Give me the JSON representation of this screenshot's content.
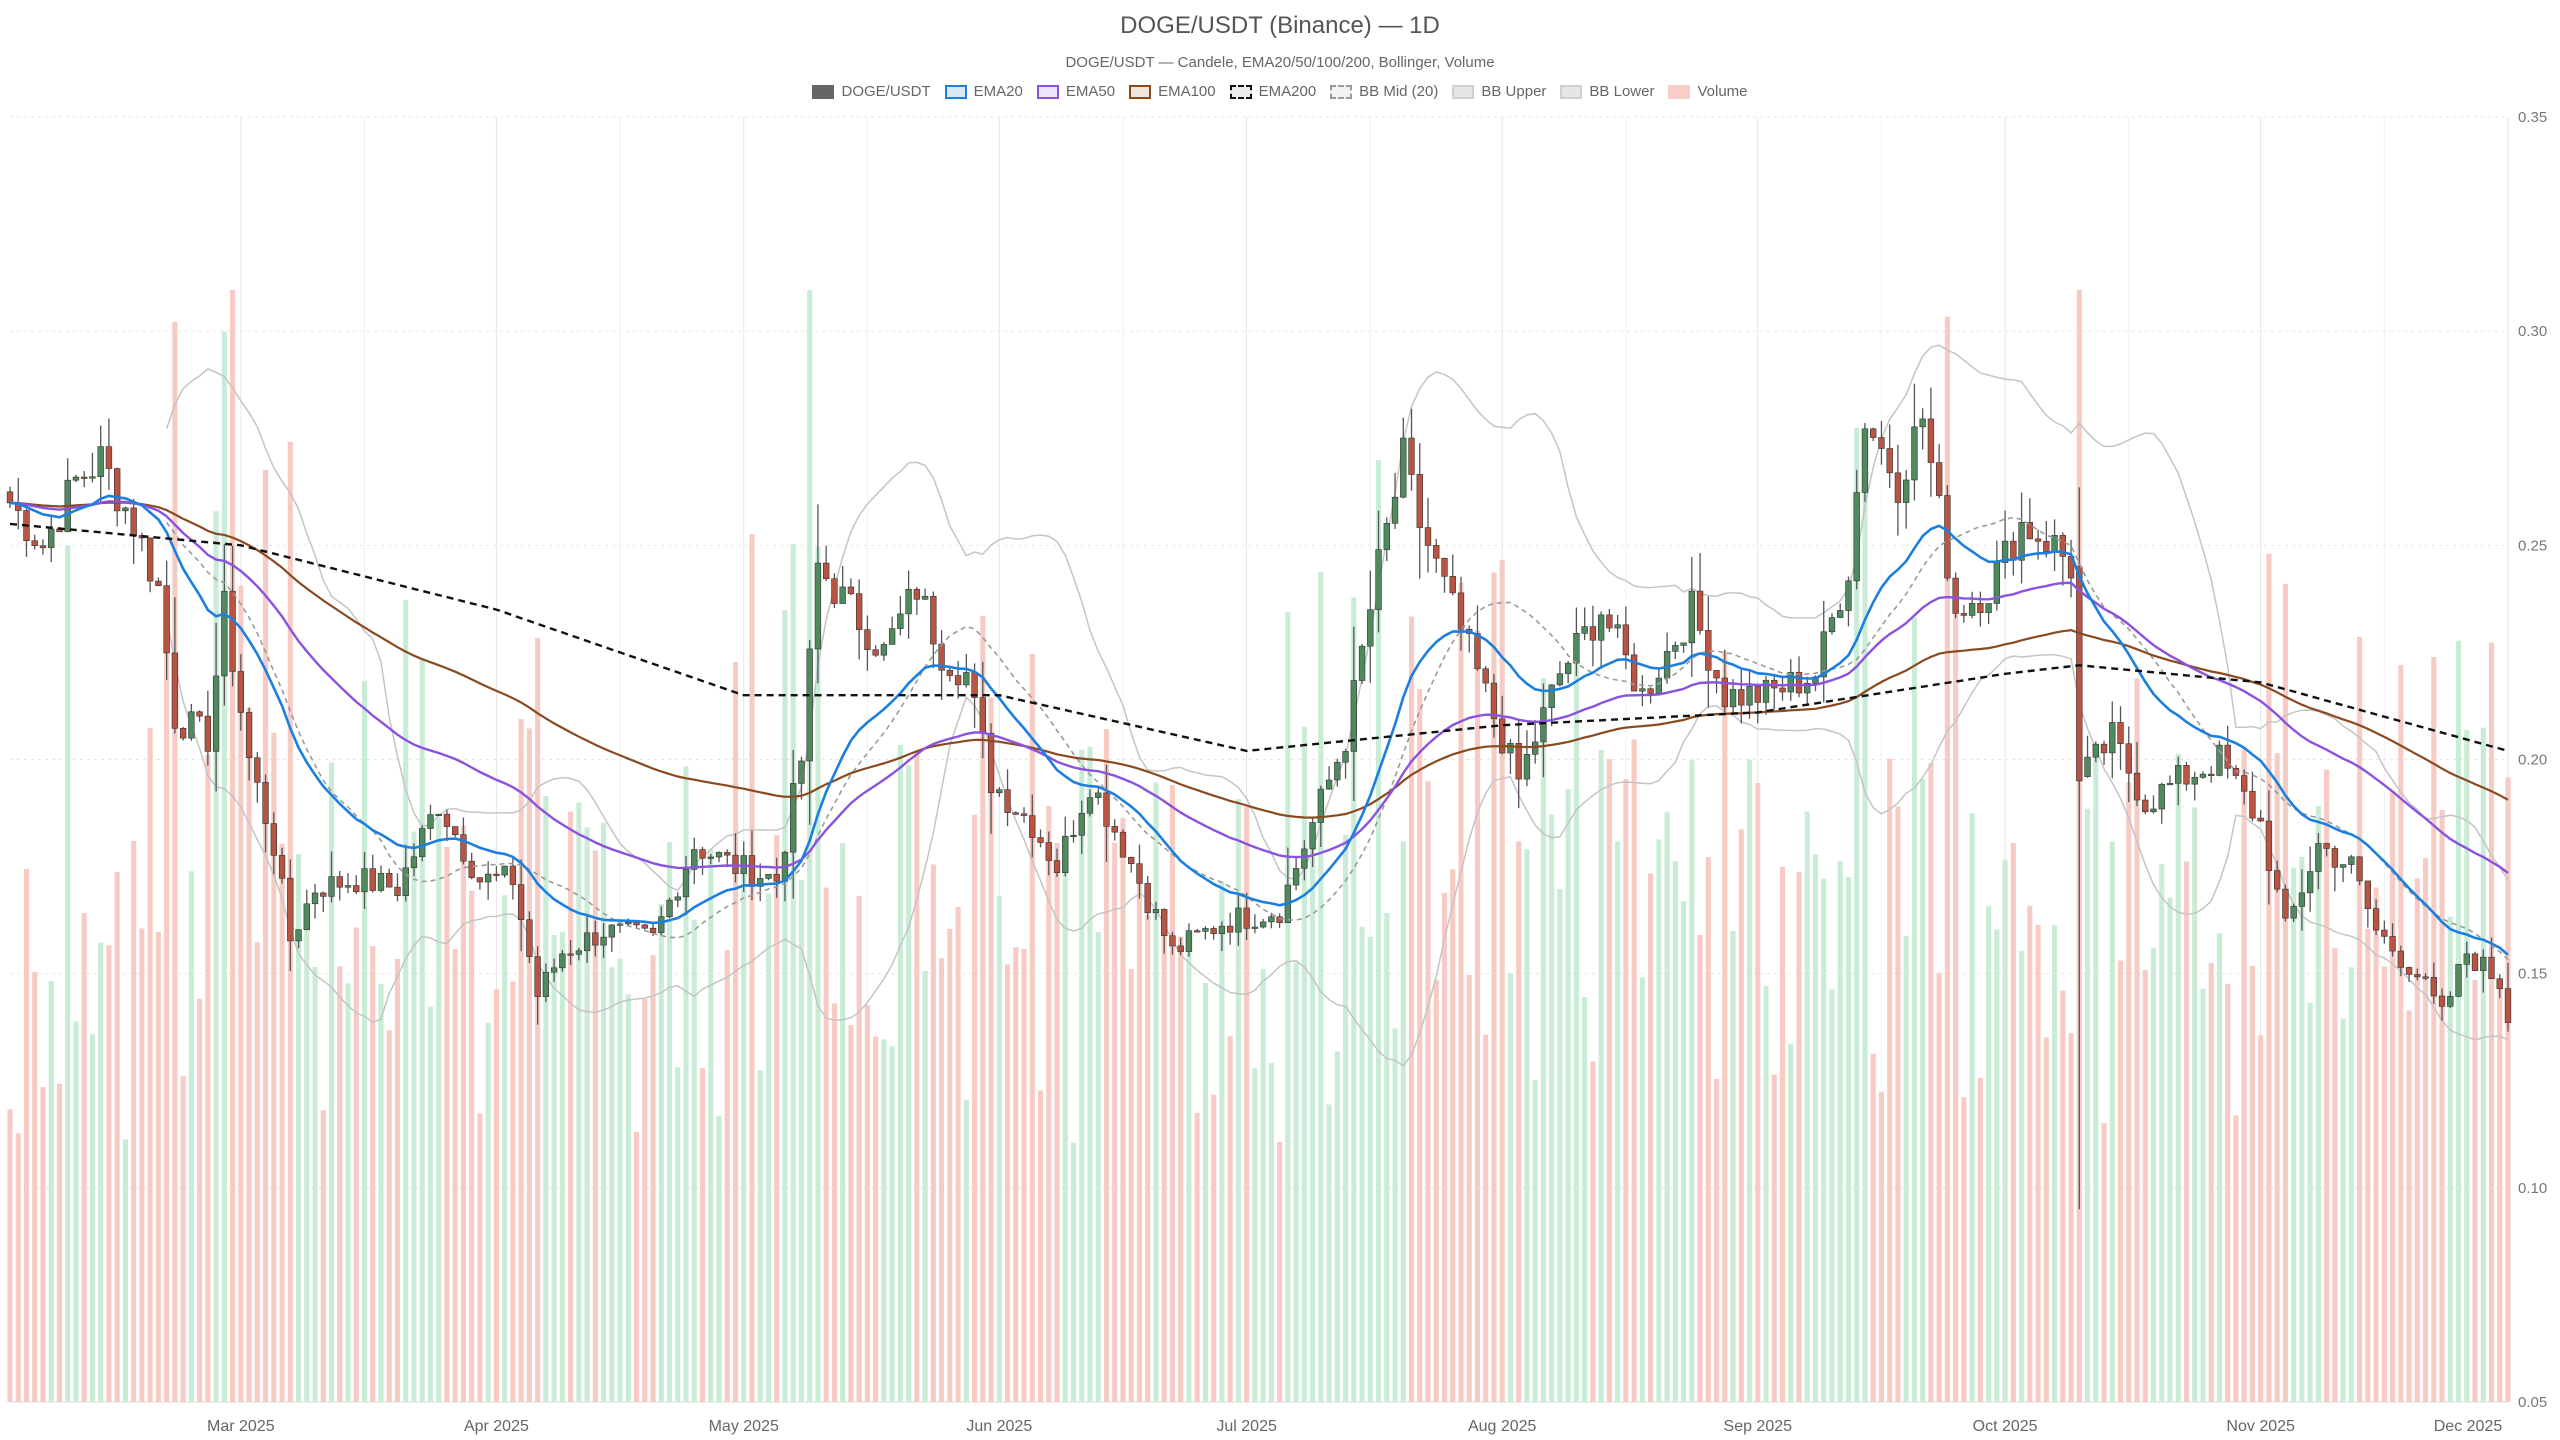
{
  "header": {
    "title": "DOGE/USDT (Binance) — 1D",
    "subtitle": "DOGE/USDT — Candele, EMA20/50/100/200, Bollinger, Volume"
  },
  "legend": [
    {
      "label": "DOGE/USDT",
      "style": "candles",
      "fill": "#666666",
      "border": "#666666"
    },
    {
      "label": "EMA20",
      "style": "line",
      "fill": "#dbe8f5",
      "border": "#1c7fe0"
    },
    {
      "label": "EMA50",
      "style": "line",
      "fill": "#ece4f8",
      "border": "#8b52e0"
    },
    {
      "label": "EMA100",
      "style": "line",
      "fill": "#ede5de",
      "border": "#8a4a20"
    },
    {
      "label": "EMA200",
      "style": "dashed",
      "fill": "#ececec",
      "border": "#111111"
    },
    {
      "label": "BB Mid (20)",
      "style": "dashed",
      "fill": "#f2f2f2",
      "border": "#9a9a9a"
    },
    {
      "label": "BB Upper",
      "style": "line",
      "fill": "#e6e6e6",
      "border": "#cfcfcf"
    },
    {
      "label": "BB Lower",
      "style": "line",
      "fill": "#e6e6e6",
      "border": "#cfcfcf"
    },
    {
      "label": "Volume",
      "style": "fill",
      "fill": "#f8cfc8",
      "border": "#f8cfc8"
    }
  ],
  "colors": {
    "up": "#4f8a5e",
    "down": "#b85441",
    "wick": "#555555",
    "vol_up": "#c9ecd6",
    "vol_down": "#f7cbc3",
    "ema20": "#1c7fe0",
    "ema50": "#8b52e0",
    "ema100": "#8a4a20",
    "ema200": "#111111",
    "bb_mid": "#9a9a9a",
    "bb_band": "#c4c4c4",
    "grid": "#e6e6e6"
  },
  "chart_data": {
    "type": "candlestick",
    "y_axis": {
      "position": "right",
      "min": 0.05,
      "max": 0.35,
      "ticks": [
        "0.05",
        "0.10",
        "0.15",
        "0.20",
        "0.25",
        "0.30",
        "0.35"
      ]
    },
    "x_axis": {
      "start": "2025-02-01",
      "end": "2025-12-01",
      "labels": [
        {
          "label": "Mar 2025",
          "date": "2025-03-01"
        },
        {
          "label": "Apr 2025",
          "date": "2025-04-01"
        },
        {
          "label": "May 2025",
          "date": "2025-05-01"
        },
        {
          "label": "Jun 2025",
          "date": "2025-06-01"
        },
        {
          "label": "Jul 2025",
          "date": "2025-07-01"
        },
        {
          "label": "Aug 2025",
          "date": "2025-08-01"
        },
        {
          "label": "Sep 2025",
          "date": "2025-09-01"
        },
        {
          "label": "Oct 2025",
          "date": "2025-10-01"
        },
        {
          "label": "Nov 2025",
          "date": "2025-11-01"
        },
        {
          "label": "Dec 2025",
          "date": "2025-12-01"
        }
      ]
    },
    "close_keypoints": [
      [
        "2025-02-01",
        0.26
      ],
      [
        "2025-02-05",
        0.25
      ],
      [
        "2025-02-09",
        0.265
      ],
      [
        "2025-02-12",
        0.27
      ],
      [
        "2025-02-16",
        0.255
      ],
      [
        "2025-02-19",
        0.24
      ],
      [
        "2025-02-21",
        0.21
      ],
      [
        "2025-02-25",
        0.205
      ],
      [
        "2025-02-27",
        0.235
      ],
      [
        "2025-03-02",
        0.2
      ],
      [
        "2025-03-05",
        0.18
      ],
      [
        "2025-03-07",
        0.158
      ],
      [
        "2025-03-10",
        0.17
      ],
      [
        "2025-03-15",
        0.172
      ],
      [
        "2025-03-20",
        0.17
      ],
      [
        "2025-03-25",
        0.19
      ],
      [
        "2025-03-30",
        0.172
      ],
      [
        "2025-04-03",
        0.172
      ],
      [
        "2025-04-06",
        0.145
      ],
      [
        "2025-04-09",
        0.155
      ],
      [
        "2025-04-14",
        0.16
      ],
      [
        "2025-04-20",
        0.158
      ],
      [
        "2025-04-25",
        0.18
      ],
      [
        "2025-04-30",
        0.175
      ],
      [
        "2025-05-05",
        0.172
      ],
      [
        "2025-05-08",
        0.2
      ],
      [
        "2025-05-10",
        0.245
      ],
      [
        "2025-05-14",
        0.235
      ],
      [
        "2025-05-18",
        0.225
      ],
      [
        "2025-05-22",
        0.24
      ],
      [
        "2025-05-25",
        0.225
      ],
      [
        "2025-05-28",
        0.22
      ],
      [
        "2025-05-31",
        0.195
      ],
      [
        "2025-06-05",
        0.185
      ],
      [
        "2025-06-08",
        0.175
      ],
      [
        "2025-06-12",
        0.195
      ],
      [
        "2025-06-16",
        0.18
      ],
      [
        "2025-06-22",
        0.155
      ],
      [
        "2025-06-28",
        0.162
      ],
      [
        "2025-07-05",
        0.165
      ],
      [
        "2025-07-10",
        0.19
      ],
      [
        "2025-07-13",
        0.205
      ],
      [
        "2025-07-17",
        0.245
      ],
      [
        "2025-07-20",
        0.27
      ],
      [
        "2025-07-22",
        0.255
      ],
      [
        "2025-07-26",
        0.235
      ],
      [
        "2025-07-31",
        0.21
      ],
      [
        "2025-08-03",
        0.195
      ],
      [
        "2025-08-08",
        0.22
      ],
      [
        "2025-08-13",
        0.235
      ],
      [
        "2025-08-18",
        0.215
      ],
      [
        "2025-08-24",
        0.235
      ],
      [
        "2025-08-28",
        0.215
      ],
      [
        "2025-09-02",
        0.215
      ],
      [
        "2025-09-08",
        0.22
      ],
      [
        "2025-09-12",
        0.245
      ],
      [
        "2025-09-14",
        0.28
      ],
      [
        "2025-09-18",
        0.265
      ],
      [
        "2025-09-21",
        0.28
      ],
      [
        "2025-09-25",
        0.235
      ],
      [
        "2025-09-29",
        0.24
      ],
      [
        "2025-10-03",
        0.255
      ],
      [
        "2025-10-07",
        0.25
      ],
      [
        "2025-10-09",
        0.245
      ],
      [
        "2025-10-10",
        0.195
      ],
      [
        "2025-10-14",
        0.205
      ],
      [
        "2025-10-18",
        0.19
      ],
      [
        "2025-10-22",
        0.195
      ],
      [
        "2025-10-27",
        0.2
      ],
      [
        "2025-11-01",
        0.185
      ],
      [
        "2025-11-04",
        0.16
      ],
      [
        "2025-11-08",
        0.18
      ],
      [
        "2025-11-12",
        0.175
      ],
      [
        "2025-11-15",
        0.16
      ],
      [
        "2025-11-20",
        0.15
      ],
      [
        "2025-11-23",
        0.14
      ],
      [
        "2025-11-26",
        0.155
      ],
      [
        "2025-11-30",
        0.148
      ],
      [
        "2025-12-01",
        0.14
      ]
    ],
    "ema200_keypoints": [
      [
        "2025-02-01",
        0.255
      ],
      [
        "2025-03-01",
        0.25
      ],
      [
        "2025-04-01",
        0.235
      ],
      [
        "2025-05-01",
        0.215
      ],
      [
        "2025-06-01",
        0.215
      ],
      [
        "2025-07-01",
        0.202
      ],
      [
        "2025-08-01",
        0.208
      ],
      [
        "2025-09-01",
        0.211
      ],
      [
        "2025-10-01",
        0.22
      ],
      [
        "2025-10-10",
        0.222
      ],
      [
        "2025-11-01",
        0.218
      ],
      [
        "2025-12-01",
        0.202
      ]
    ],
    "volume": {
      "note": "bars at chart bottom, green = up day, red = down day",
      "spikes": [
        {
          "date": "2025-10-10",
          "level": "max"
        },
        {
          "date": "2025-09-14",
          "level": "high"
        },
        {
          "date": "2025-07-17",
          "level": "high"
        },
        {
          "date": "2025-05-10",
          "level": "high"
        }
      ]
    }
  }
}
